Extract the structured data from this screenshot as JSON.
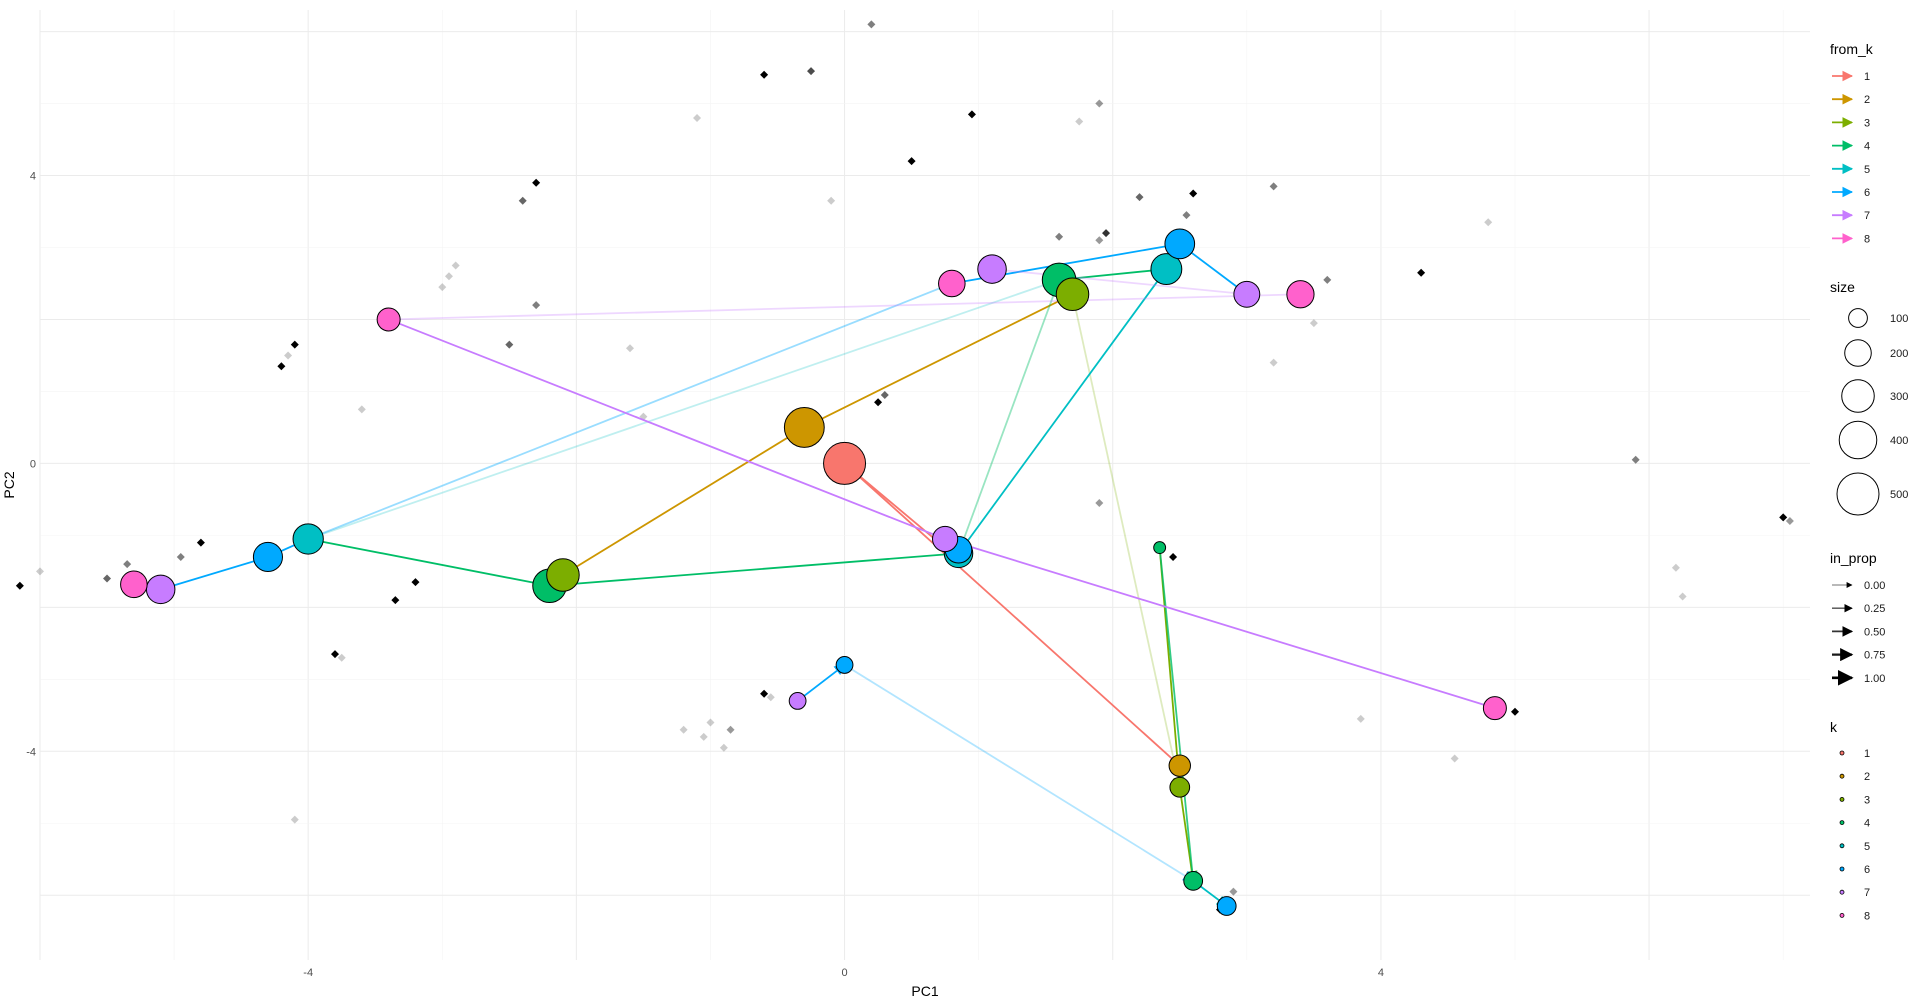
{
  "chart_data": {
    "type": "scatter",
    "xlabel": "PC1",
    "ylabel": "PC2",
    "xlim": [
      -6.0,
      7.2
    ],
    "ylim": [
      -6.9,
      6.3
    ],
    "x_ticks": [
      -4,
      0,
      4
    ],
    "y_ticks": [
      -4,
      0,
      4
    ],
    "grid": true,
    "legend_placement": "right",
    "k_colors": {
      "1": "#F8766D",
      "2": "#CD9600",
      "3": "#7CAE00",
      "4": "#00BE67",
      "5": "#00BFC4",
      "6": "#00A9FF",
      "7": "#C77CFF",
      "8": "#FF61CC"
    },
    "nodes": [
      {
        "k": 1,
        "x": 0.0,
        "y": 0.0,
        "size": 500
      },
      {
        "k": 2,
        "x": -0.3,
        "y": 0.5,
        "size": 450
      },
      {
        "k": 2,
        "x": 2.5,
        "y": -4.2,
        "size": 130
      },
      {
        "k": 3,
        "x": -2.1,
        "y": -1.55,
        "size": 300
      },
      {
        "k": 3,
        "x": 1.7,
        "y": 2.35,
        "size": 300
      },
      {
        "k": 3,
        "x": 2.5,
        "y": -4.5,
        "size": 110
      },
      {
        "k": 4,
        "x": -2.2,
        "y": -1.7,
        "size": 320
      },
      {
        "k": 4,
        "x": 1.6,
        "y": 2.55,
        "size": 320
      },
      {
        "k": 4,
        "x": 2.6,
        "y": -5.8,
        "size": 100
      },
      {
        "k": 4,
        "x": 2.35,
        "y": -1.17,
        "size": 40
      },
      {
        "k": 5,
        "x": -4.0,
        "y": -1.05,
        "size": 260
      },
      {
        "k": 5,
        "x": 0.85,
        "y": -1.25,
        "size": 230
      },
      {
        "k": 5,
        "x": 2.4,
        "y": 2.7,
        "size": 270
      },
      {
        "k": 6,
        "x": -4.3,
        "y": -1.3,
        "size": 240
      },
      {
        "k": 6,
        "x": 0.85,
        "y": -1.2,
        "size": 200
      },
      {
        "k": 6,
        "x": 2.5,
        "y": 3.05,
        "size": 250
      },
      {
        "k": 6,
        "x": 2.85,
        "y": -6.15,
        "size": 100
      },
      {
        "k": 6,
        "x": 0.0,
        "y": -2.8,
        "size": 80
      },
      {
        "k": 7,
        "x": -5.1,
        "y": -1.75,
        "size": 230
      },
      {
        "k": 7,
        "x": 0.75,
        "y": -1.05,
        "size": 180
      },
      {
        "k": 7,
        "x": 1.1,
        "y": 2.7,
        "size": 230
      },
      {
        "k": 7,
        "x": 3.0,
        "y": 2.35,
        "size": 190
      },
      {
        "k": 7,
        "x": -0.35,
        "y": -3.3,
        "size": 80
      },
      {
        "k": 8,
        "x": -5.3,
        "y": -1.68,
        "size": 200
      },
      {
        "k": 8,
        "x": -3.4,
        "y": 2.0,
        "size": 150
      },
      {
        "k": 8,
        "x": 0.8,
        "y": 2.5,
        "size": 200
      },
      {
        "k": 8,
        "x": 3.4,
        "y": 2.35,
        "size": 210
      },
      {
        "k": 8,
        "x": 4.85,
        "y": -3.4,
        "size": 150
      }
    ],
    "paths": [
      {
        "from_k": 1,
        "in_prop": 1.0,
        "points": [
          [
            0.0,
            0.0
          ],
          [
            2.5,
            -4.2
          ]
        ]
      },
      {
        "from_k": 1,
        "in_prop": 1.0,
        "points": [
          [
            0.0,
            0.0
          ],
          [
            0.8,
            -1.25
          ]
        ]
      },
      {
        "from_k": 2,
        "in_prop": 1.0,
        "points": [
          [
            -0.3,
            0.5
          ],
          [
            1.7,
            2.35
          ]
        ]
      },
      {
        "from_k": 2,
        "in_prop": 1.0,
        "points": [
          [
            -0.3,
            0.5
          ],
          [
            -2.1,
            -1.55
          ]
        ]
      },
      {
        "from_k": 3,
        "in_prop": 0.2,
        "points": [
          [
            1.7,
            2.35
          ],
          [
            2.5,
            -4.5
          ]
        ]
      },
      {
        "from_k": 3,
        "in_prop": 1.0,
        "points": [
          [
            2.5,
            -4.5
          ],
          [
            2.6,
            -5.8
          ]
        ]
      },
      {
        "from_k": 3,
        "in_prop": 1.0,
        "points": [
          [
            2.35,
            -1.17
          ],
          [
            2.5,
            -4.5
          ]
        ]
      },
      {
        "from_k": 4,
        "in_prop": 1.0,
        "points": [
          [
            -4.0,
            -1.05
          ],
          [
            -2.2,
            -1.7
          ],
          [
            0.85,
            -1.25
          ]
        ]
      },
      {
        "from_k": 4,
        "in_prop": 1.0,
        "points": [
          [
            1.6,
            2.55
          ],
          [
            2.4,
            2.7
          ]
        ]
      },
      {
        "from_k": 4,
        "in_prop": 0.4,
        "points": [
          [
            1.6,
            2.55
          ],
          [
            0.85,
            -1.25
          ]
        ]
      },
      {
        "from_k": 4,
        "in_prop": 0.8,
        "points": [
          [
            2.35,
            -1.17
          ],
          [
            2.6,
            -5.8
          ]
        ]
      },
      {
        "from_k": 5,
        "in_prop": 1.0,
        "points": [
          [
            0.85,
            -1.25
          ],
          [
            2.4,
            2.7
          ]
        ]
      },
      {
        "from_k": 5,
        "in_prop": 0.25,
        "points": [
          [
            -4.0,
            -1.05
          ],
          [
            1.6,
            2.55
          ]
        ]
      },
      {
        "from_k": 5,
        "in_prop": 1.0,
        "points": [
          [
            2.6,
            -5.8
          ],
          [
            2.85,
            -6.15
          ]
        ]
      },
      {
        "from_k": 6,
        "in_prop": 1.0,
        "points": [
          [
            -5.1,
            -1.75
          ],
          [
            -4.3,
            -1.3
          ],
          [
            -4.0,
            -1.05
          ]
        ]
      },
      {
        "from_k": 6,
        "in_prop": 0.4,
        "points": [
          [
            -4.0,
            -1.05
          ],
          [
            0.8,
            2.5
          ]
        ]
      },
      {
        "from_k": 6,
        "in_prop": 1.0,
        "points": [
          [
            0.8,
            2.5
          ],
          [
            2.5,
            3.05
          ],
          [
            3.0,
            2.35
          ]
        ]
      },
      {
        "from_k": 6,
        "in_prop": 1.0,
        "points": [
          [
            -0.35,
            -3.3
          ],
          [
            0.0,
            -2.8
          ]
        ]
      },
      {
        "from_k": 6,
        "in_prop": 0.3,
        "points": [
          [
            0.0,
            -2.8
          ],
          [
            2.6,
            -5.8
          ]
        ]
      },
      {
        "from_k": 7,
        "in_prop": 1.0,
        "points": [
          [
            -3.4,
            2.0
          ],
          [
            0.75,
            -1.05
          ],
          [
            4.85,
            -3.4
          ]
        ]
      },
      {
        "from_k": 7,
        "in_prop": 0.3,
        "points": [
          [
            -3.4,
            2.0
          ],
          [
            3.4,
            2.35
          ]
        ]
      },
      {
        "from_k": 7,
        "in_prop": 0.3,
        "points": [
          [
            1.1,
            2.7
          ],
          [
            3.0,
            2.35
          ]
        ]
      }
    ],
    "background_points": [
      {
        "x": 0.2,
        "y": 6.1,
        "p": 0.5
      },
      {
        "x": -0.6,
        "y": 5.4,
        "p": 1.0
      },
      {
        "x": -0.25,
        "y": 5.45,
        "p": 0.7
      },
      {
        "x": -1.1,
        "y": 4.8,
        "p": 0.2
      },
      {
        "x": 0.95,
        "y": 4.85,
        "p": 1.0
      },
      {
        "x": 1.9,
        "y": 5.0,
        "p": 0.4
      },
      {
        "x": 1.75,
        "y": 4.75,
        "p": 0.2
      },
      {
        "x": 0.5,
        "y": 4.2,
        "p": 1.0
      },
      {
        "x": -2.3,
        "y": 3.9,
        "p": 1.0
      },
      {
        "x": -2.4,
        "y": 3.65,
        "p": 0.6
      },
      {
        "x": -0.1,
        "y": 3.65,
        "p": 0.2
      },
      {
        "x": 2.2,
        "y": 3.7,
        "p": 0.6
      },
      {
        "x": 2.6,
        "y": 3.75,
        "p": 1.0
      },
      {
        "x": 2.55,
        "y": 3.45,
        "p": 0.5
      },
      {
        "x": 3.2,
        "y": 3.85,
        "p": 0.5
      },
      {
        "x": 4.8,
        "y": 3.35,
        "p": 0.2
      },
      {
        "x": 1.6,
        "y": 3.15,
        "p": 0.5
      },
      {
        "x": 1.9,
        "y": 3.1,
        "p": 0.4
      },
      {
        "x": 1.95,
        "y": 3.2,
        "p": 0.8
      },
      {
        "x": -2.9,
        "y": 2.75,
        "p": 0.2
      },
      {
        "x": -2.95,
        "y": 2.6,
        "p": 0.2
      },
      {
        "x": -3.0,
        "y": 2.45,
        "p": 0.2
      },
      {
        "x": -2.3,
        "y": 2.2,
        "p": 0.5
      },
      {
        "x": 3.6,
        "y": 2.55,
        "p": 0.5
      },
      {
        "x": 4.3,
        "y": 2.65,
        "p": 1.0
      },
      {
        "x": 3.5,
        "y": 1.95,
        "p": 0.2
      },
      {
        "x": -4.1,
        "y": 1.65,
        "p": 1.0
      },
      {
        "x": -4.15,
        "y": 1.5,
        "p": 0.2
      },
      {
        "x": -4.2,
        "y": 1.35,
        "p": 1.0
      },
      {
        "x": -2.5,
        "y": 1.65,
        "p": 0.6
      },
      {
        "x": -1.6,
        "y": 1.6,
        "p": 0.2
      },
      {
        "x": 3.2,
        "y": 1.4,
        "p": 0.2
      },
      {
        "x": 0.3,
        "y": 0.95,
        "p": 0.6
      },
      {
        "x": 0.25,
        "y": 0.85,
        "p": 1.0
      },
      {
        "x": -3.6,
        "y": 0.75,
        "p": 0.2
      },
      {
        "x": -1.5,
        "y": 0.65,
        "p": 0.2
      },
      {
        "x": 5.9,
        "y": 0.05,
        "p": 0.5
      },
      {
        "x": 7.0,
        "y": -0.75,
        "p": 1.0
      },
      {
        "x": 7.05,
        "y": -0.8,
        "p": 0.4
      },
      {
        "x": 1.9,
        "y": -0.55,
        "p": 0.4
      },
      {
        "x": -4.8,
        "y": -1.1,
        "p": 1.0
      },
      {
        "x": -4.95,
        "y": -1.3,
        "p": 0.5
      },
      {
        "x": -5.35,
        "y": -1.4,
        "p": 0.5
      },
      {
        "x": -5.5,
        "y": -1.6,
        "p": 0.6
      },
      {
        "x": -6.0,
        "y": -1.5,
        "p": 0.2
      },
      {
        "x": -6.15,
        "y": -1.7,
        "p": 1.0
      },
      {
        "x": -3.2,
        "y": -1.65,
        "p": 1.0
      },
      {
        "x": -3.35,
        "y": -1.9,
        "p": 1.0
      },
      {
        "x": 6.2,
        "y": -1.45,
        "p": 0.2
      },
      {
        "x": 6.25,
        "y": -1.85,
        "p": 0.2
      },
      {
        "x": 2.45,
        "y": -1.3,
        "p": 1.0
      },
      {
        "x": -3.8,
        "y": -2.65,
        "p": 1.0
      },
      {
        "x": -3.75,
        "y": -2.7,
        "p": 0.2
      },
      {
        "x": -0.6,
        "y": -3.2,
        "p": 1.0
      },
      {
        "x": -0.55,
        "y": -3.25,
        "p": 0.2
      },
      {
        "x": 3.85,
        "y": -3.55,
        "p": 0.2
      },
      {
        "x": 5.0,
        "y": -3.45,
        "p": 1.0
      },
      {
        "x": -1.2,
        "y": -3.7,
        "p": 0.2
      },
      {
        "x": -1.05,
        "y": -3.8,
        "p": 0.2
      },
      {
        "x": -1.0,
        "y": -3.6,
        "p": 0.2
      },
      {
        "x": -0.85,
        "y": -3.7,
        "p": 0.4
      },
      {
        "x": -0.9,
        "y": -3.95,
        "p": 0.2
      },
      {
        "x": 4.55,
        "y": -4.1,
        "p": 0.2
      },
      {
        "x": -4.1,
        "y": -4.95,
        "p": 0.2
      },
      {
        "x": 2.9,
        "y": -5.95,
        "p": 0.4
      },
      {
        "x": 2.8,
        "y": -6.2,
        "p": 1.0
      }
    ],
    "legends": {
      "from_k": {
        "title": "from_k",
        "labels": [
          "1",
          "2",
          "3",
          "4",
          "5",
          "6",
          "7",
          "8"
        ]
      },
      "size": {
        "title": "size",
        "labels": [
          "100",
          "200",
          "300",
          "400",
          "500"
        ],
        "values": [
          100,
          200,
          300,
          400,
          500
        ]
      },
      "in_prop": {
        "title": "in_prop",
        "labels": [
          "0.00",
          "0.25",
          "0.50",
          "0.75",
          "1.00"
        ]
      },
      "k": {
        "title": "k",
        "labels": [
          "1",
          "2",
          "3",
          "4",
          "5",
          "6",
          "7",
          "8"
        ]
      }
    }
  }
}
